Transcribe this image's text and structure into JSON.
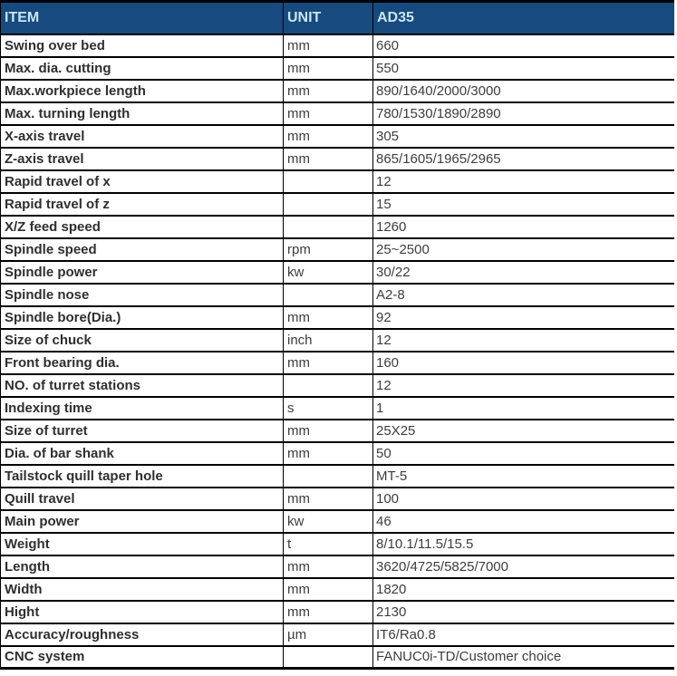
{
  "table": {
    "columns": [
      {
        "label": "ITEM"
      },
      {
        "label": "UNIT"
      },
      {
        "label": "AD35"
      }
    ],
    "rows": [
      {
        "item": "Swing over bed",
        "unit": "mm",
        "value": "660"
      },
      {
        "item": "Max. dia. cutting",
        "unit": "mm",
        "value": "550"
      },
      {
        "item": "Max.workpiece length",
        "unit": "mm",
        "value": "890/1640/2000/3000"
      },
      {
        "item": "Max. turning length",
        "unit": "mm",
        "value": "780/1530/1890/2890"
      },
      {
        "item": "X-axis travel",
        "unit": "mm",
        "value": "305"
      },
      {
        "item": "Z-axis travel",
        "unit": "mm",
        "value": "865/1605/1965/2965"
      },
      {
        "item": "Rapid travel of x",
        "unit": "",
        "value": "12"
      },
      {
        "item": "Rapid travel of z",
        "unit": "",
        "value": "15"
      },
      {
        "item": "X/Z feed speed",
        "unit": "",
        "value": "1260"
      },
      {
        "item": "Spindle speed",
        "unit": "rpm",
        "value": "25~2500"
      },
      {
        "item": "Spindle power",
        "unit": "kw",
        "value": "30/22"
      },
      {
        "item": "Spindle nose",
        "unit": "",
        "value": "A2-8"
      },
      {
        "item": "Spindle bore(Dia.)",
        "unit": "mm",
        "value": "92"
      },
      {
        "item": "Size of chuck",
        "unit": "inch",
        "value": "12"
      },
      {
        "item": "Front bearing dia.",
        "unit": "mm",
        "value": "160"
      },
      {
        "item": "NO. of turret stations",
        "unit": "",
        "value": "12"
      },
      {
        "item": "Indexing time",
        "unit": "s",
        "value": "1"
      },
      {
        "item": "Size of turret",
        "unit": "mm",
        "value": "25X25"
      },
      {
        "item": "Dia. of bar shank",
        "unit": "mm",
        "value": "50"
      },
      {
        "item": "Tailstock quill taper hole",
        "unit": "",
        "value": "MT-5"
      },
      {
        "item": "Quill travel",
        "unit": "mm",
        "value": "100"
      },
      {
        "item": "Main power",
        "unit": "kw",
        "value": "46"
      },
      {
        "item": "Weight",
        "unit": "t",
        "value": "8/10.1/11.5/15.5"
      },
      {
        "item": "Length",
        "unit": "mm",
        "value": "3620/4725/5825/7000"
      },
      {
        "item": "Width",
        "unit": "mm",
        "value": "1820"
      },
      {
        "item": "Hight",
        "unit": "mm",
        "value": "2130"
      },
      {
        "item": "Accuracy/roughness",
        "unit": "µm",
        "value": "IT6/Ra0.8"
      },
      {
        "item": "CNC system",
        "unit": "",
        "value": "FANUC0i-TD/Customer choice"
      }
    ],
    "colors": {
      "header_bg": "#174A7E",
      "header_text": "#C9E5F5",
      "border": "#000000",
      "row_text": "#3D3D3D"
    }
  }
}
